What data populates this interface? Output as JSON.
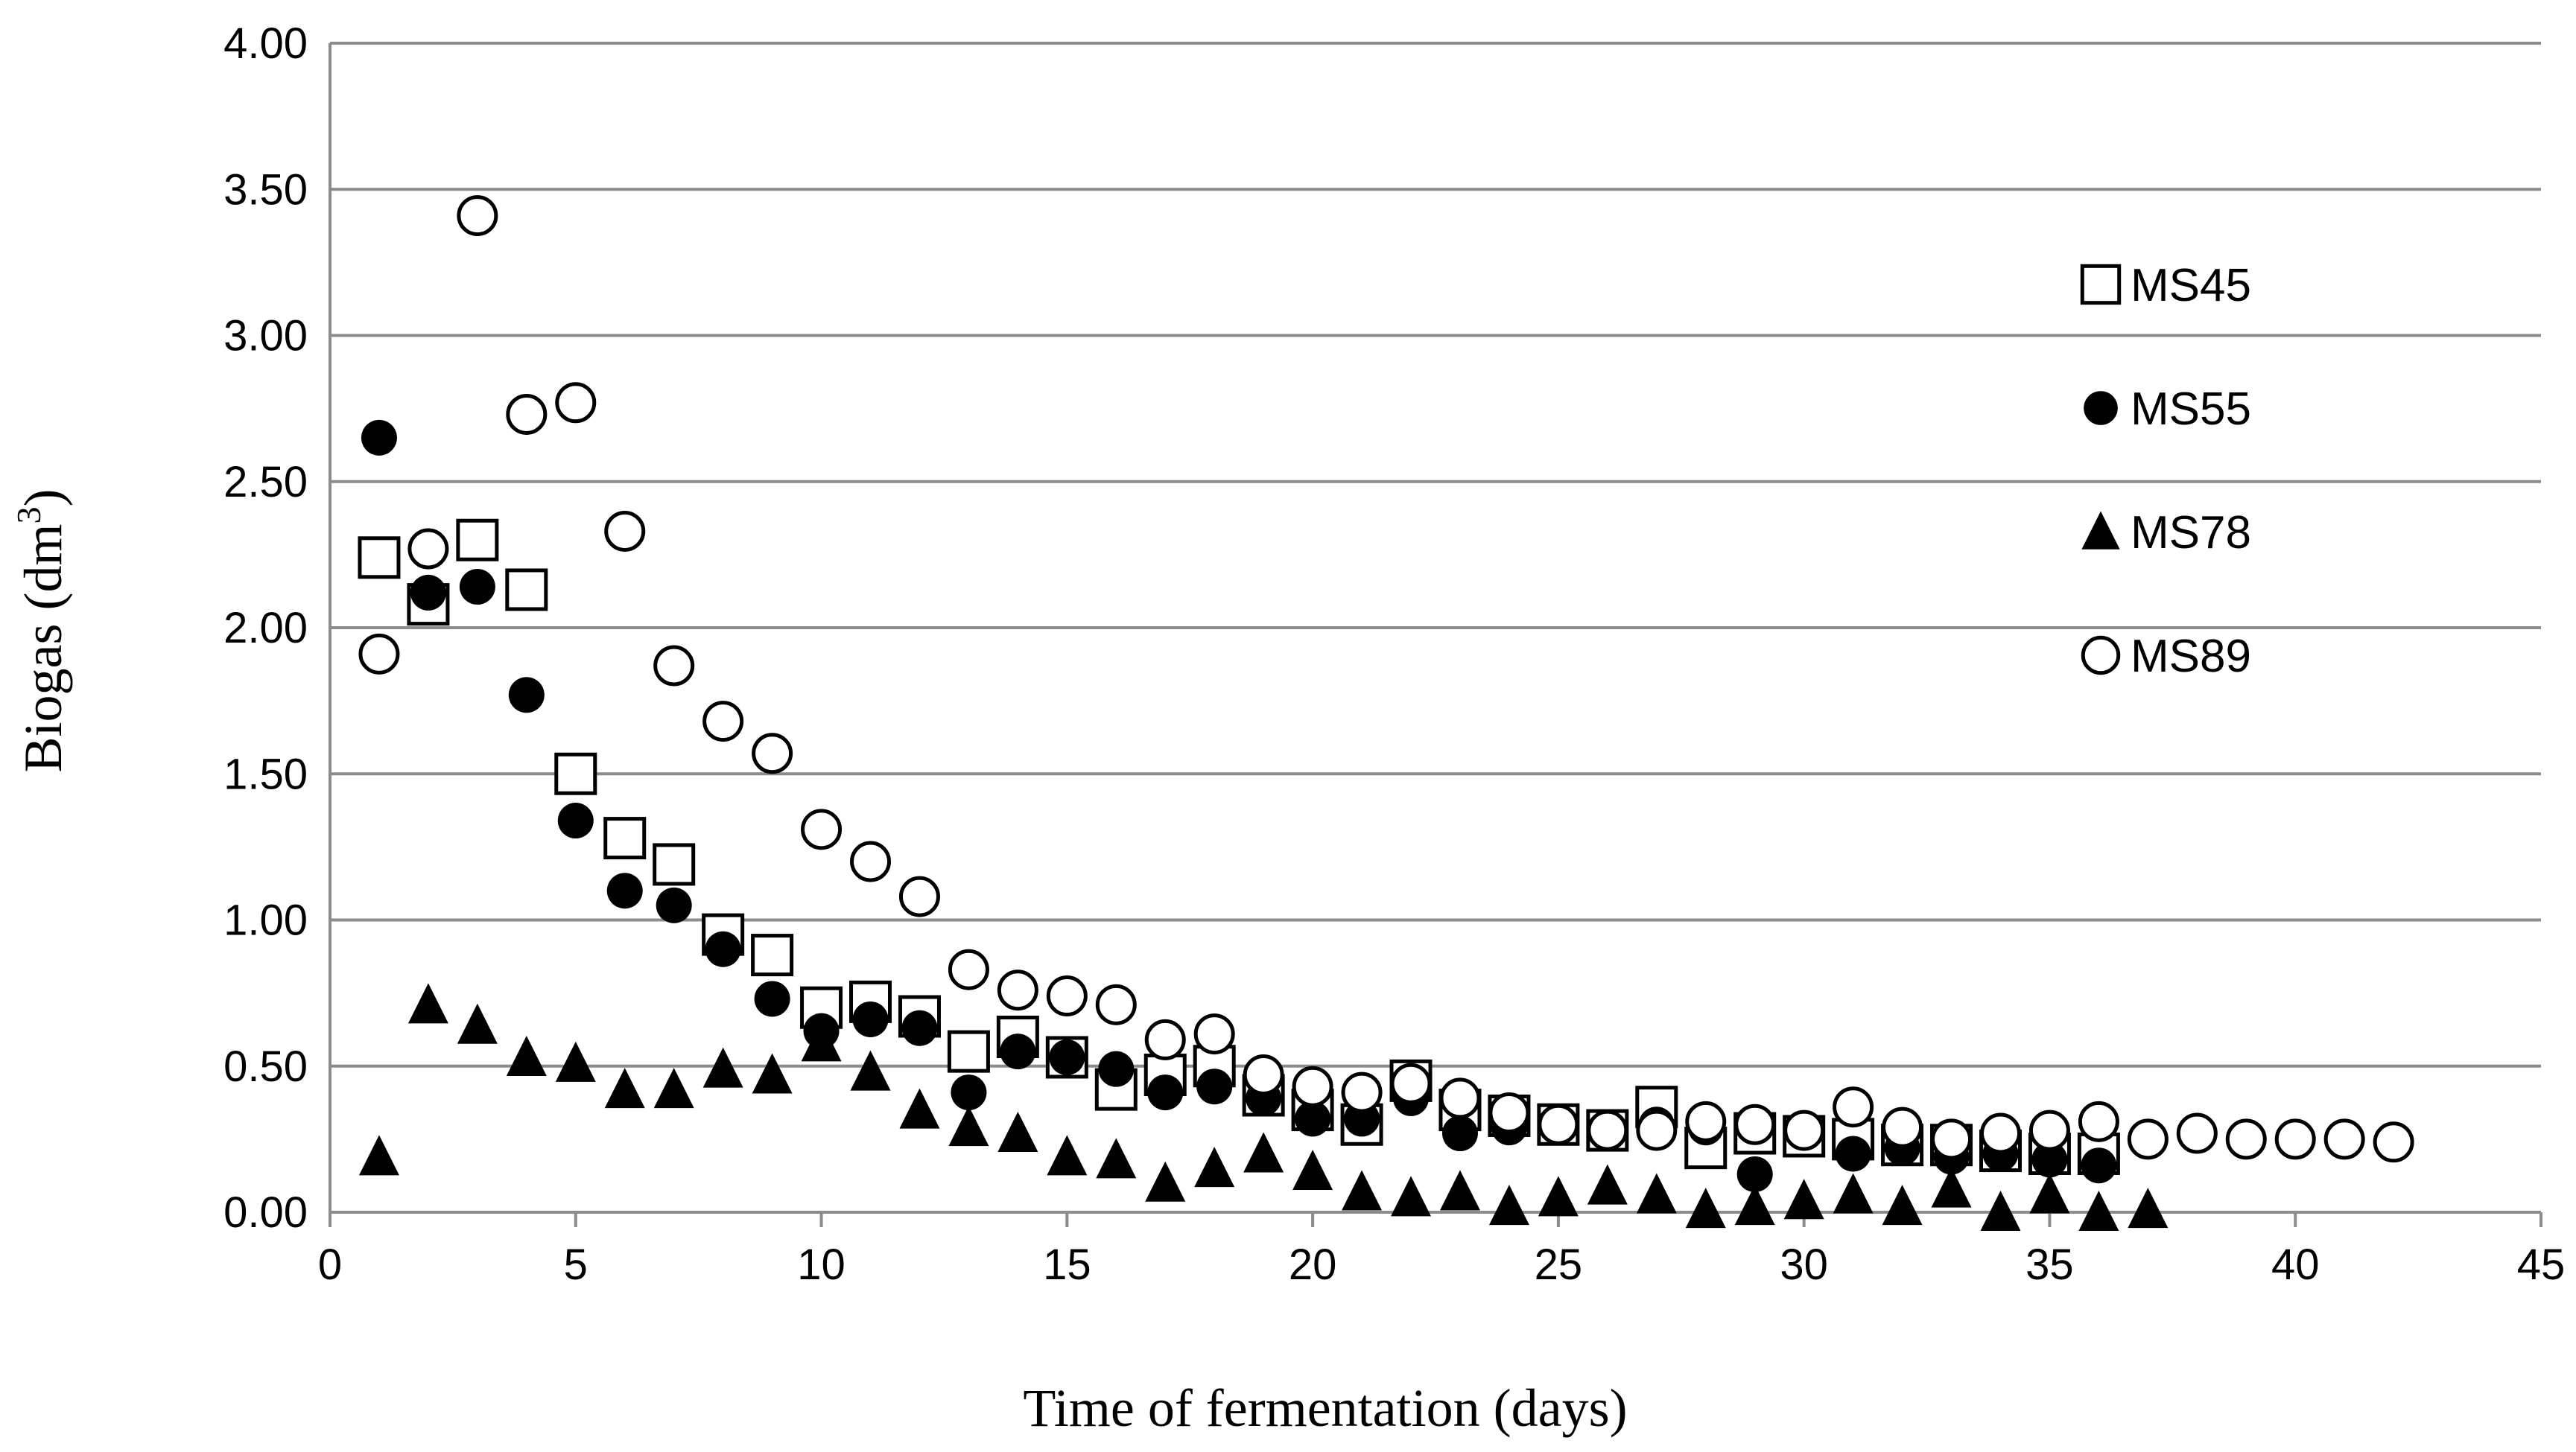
{
  "chart_data": {
    "type": "scatter",
    "title": "",
    "xlabel": "Time of fermentation (days)",
    "ylabel_main": "Biogas (dm",
    "ylabel_sup": "3",
    "ylabel_close": ")",
    "xlim": [
      0,
      45
    ],
    "ylim": [
      0,
      4
    ],
    "x_ticks": [
      0,
      5,
      10,
      15,
      20,
      25,
      30,
      35,
      40,
      45
    ],
    "x_tick_labels": [
      "0",
      "5",
      "10",
      "15",
      "20",
      "25",
      "30",
      "35",
      "40",
      "45"
    ],
    "y_ticks": [
      0,
      0.5,
      1,
      1.5,
      2,
      2.5,
      3,
      3.5,
      4
    ],
    "y_tick_labels": [
      "0.00",
      "0.50",
      "1.00",
      "1.50",
      "2.00",
      "2.50",
      "3.00",
      "3.50",
      "4.00"
    ],
    "grid": "horizontal",
    "legend_position": "right",
    "series": [
      {
        "name": "MS45",
        "marker": "open-square",
        "x": [
          1,
          2,
          3,
          4,
          5,
          6,
          7,
          8,
          9,
          10,
          11,
          12,
          13,
          14,
          15,
          16,
          17,
          18,
          19,
          20,
          21,
          22,
          23,
          24,
          25,
          26,
          27,
          28,
          29,
          30,
          31,
          32,
          33,
          34,
          35,
          36
        ],
        "values": [
          2.24,
          2.08,
          2.3,
          2.13,
          1.5,
          1.28,
          1.19,
          0.95,
          0.88,
          0.7,
          0.72,
          0.67,
          0.55,
          0.6,
          0.53,
          0.42,
          0.47,
          0.5,
          0.4,
          0.35,
          0.3,
          0.45,
          0.35,
          0.33,
          0.3,
          0.28,
          0.36,
          0.22,
          0.27,
          0.26,
          0.25,
          0.23,
          0.23,
          0.21,
          0.2,
          0.2
        ]
      },
      {
        "name": "MS55",
        "marker": "filled-circle",
        "x": [
          1,
          2,
          3,
          4,
          5,
          6,
          7,
          8,
          9,
          10,
          11,
          12,
          13,
          14,
          15,
          16,
          17,
          18,
          19,
          20,
          21,
          22,
          23,
          24,
          25,
          26,
          27,
          28,
          29,
          30,
          31,
          32,
          33,
          34,
          35,
          36
        ],
        "values": [
          2.65,
          2.12,
          2.14,
          1.77,
          1.34,
          1.1,
          1.05,
          0.9,
          0.73,
          0.62,
          0.66,
          0.63,
          0.41,
          0.55,
          0.53,
          0.49,
          0.41,
          0.43,
          0.39,
          0.32,
          0.32,
          0.39,
          0.27,
          0.29,
          0.29,
          0.28,
          0.3,
          0.29,
          0.13,
          0.28,
          0.2,
          0.22,
          0.19,
          0.2,
          0.18,
          0.16
        ]
      },
      {
        "name": "MS78",
        "marker": "filled-triangle",
        "x": [
          1,
          2,
          3,
          4,
          5,
          6,
          7,
          8,
          9,
          10,
          11,
          12,
          13,
          14,
          15,
          16,
          17,
          18,
          19,
          20,
          21,
          22,
          23,
          24,
          25,
          26,
          27,
          28,
          29,
          30,
          31,
          32,
          33,
          34,
          35,
          36,
          37
        ],
        "values": [
          0.19,
          0.71,
          0.64,
          0.53,
          0.51,
          0.42,
          0.42,
          0.49,
          0.47,
          0.58,
          0.48,
          0.35,
          0.29,
          0.27,
          0.19,
          0.18,
          0.1,
          0.15,
          0.2,
          0.14,
          0.07,
          0.05,
          0.07,
          0.02,
          0.05,
          0.09,
          0.06,
          0.01,
          0.02,
          0.04,
          0.06,
          0.02,
          0.08,
          0.0,
          0.06,
          0.0,
          0.01
        ]
      },
      {
        "name": "MS89",
        "marker": "open-circle",
        "x": [
          1,
          2,
          3,
          4,
          5,
          6,
          7,
          8,
          9,
          10,
          11,
          12,
          13,
          14,
          15,
          16,
          17,
          18,
          19,
          20,
          21,
          22,
          23,
          24,
          25,
          26,
          27,
          28,
          29,
          30,
          31,
          32,
          33,
          34,
          35,
          36,
          37,
          38,
          39,
          40,
          41,
          42
        ],
        "values": [
          1.91,
          2.27,
          3.41,
          2.73,
          2.77,
          2.33,
          1.87,
          1.68,
          1.57,
          1.31,
          1.2,
          1.08,
          0.83,
          0.76,
          0.74,
          0.71,
          0.59,
          0.61,
          0.47,
          0.43,
          0.41,
          0.44,
          0.39,
          0.34,
          0.3,
          0.28,
          0.28,
          0.31,
          0.3,
          0.28,
          0.36,
          0.29,
          0.25,
          0.27,
          0.28,
          0.31,
          0.25,
          0.27,
          0.25,
          0.25,
          0.25,
          0.24
        ]
      }
    ]
  }
}
